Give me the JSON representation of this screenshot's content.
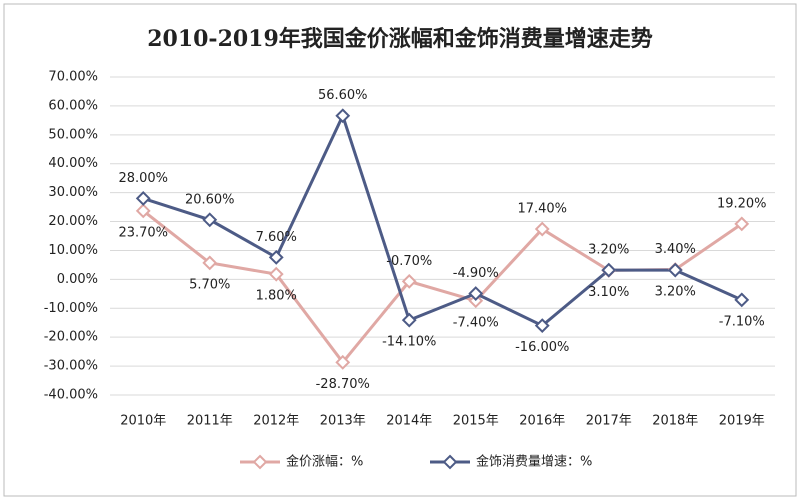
{
  "chart_data": {
    "type": "line",
    "title": "2010-2019年我国金价涨幅和金饰消费量增速走势",
    "categories": [
      "2010年",
      "2011年",
      "2012年",
      "2013年",
      "2014年",
      "2015年",
      "2016年",
      "2017年",
      "2018年",
      "2019年"
    ],
    "series": [
      {
        "name": "金价涨幅：%",
        "color": "#e0a8a4",
        "values": [
          23.7,
          5.7,
          1.8,
          -28.7,
          -0.7,
          -7.4,
          17.4,
          3.1,
          3.4,
          19.2
        ],
        "value_labels": [
          "23.70%",
          "5.70%",
          "1.80%",
          "-28.70%",
          "-0.70%",
          "-7.40%",
          "17.40%",
          "3.10%",
          "3.40%",
          "19.20%"
        ]
      },
      {
        "name": "金饰消费量增速：%",
        "color": "#4d5b86",
        "values": [
          28.0,
          20.6,
          7.6,
          56.6,
          -14.1,
          -4.9,
          -16.0,
          3.2,
          3.2,
          -7.1
        ],
        "value_labels": [
          "28.00%",
          "20.60%",
          "7.60%",
          "56.60%",
          "-14.10%",
          "-4.90%",
          "-16.00%",
          "3.20%",
          "3.20%",
          "-7.10%"
        ]
      }
    ],
    "ylim": [
      -40,
      70
    ],
    "yticks": [
      {
        "value": -40,
        "label": "-40.00%"
      },
      {
        "value": -30,
        "label": "-30.00%"
      },
      {
        "value": -20,
        "label": "-20.00%"
      },
      {
        "value": -10,
        "label": "-10.00%"
      },
      {
        "value": 0,
        "label": "0.00%"
      },
      {
        "value": 10,
        "label": "10.00%"
      },
      {
        "value": 20,
        "label": "20.00%"
      },
      {
        "value": 30,
        "label": "30.00%"
      },
      {
        "value": 40,
        "label": "40.00%"
      },
      {
        "value": 50,
        "label": "50.00%"
      },
      {
        "value": 60,
        "label": "60.00%"
      },
      {
        "value": 70,
        "label": "70.00%"
      }
    ],
    "grid": true,
    "legend": "bottom"
  }
}
